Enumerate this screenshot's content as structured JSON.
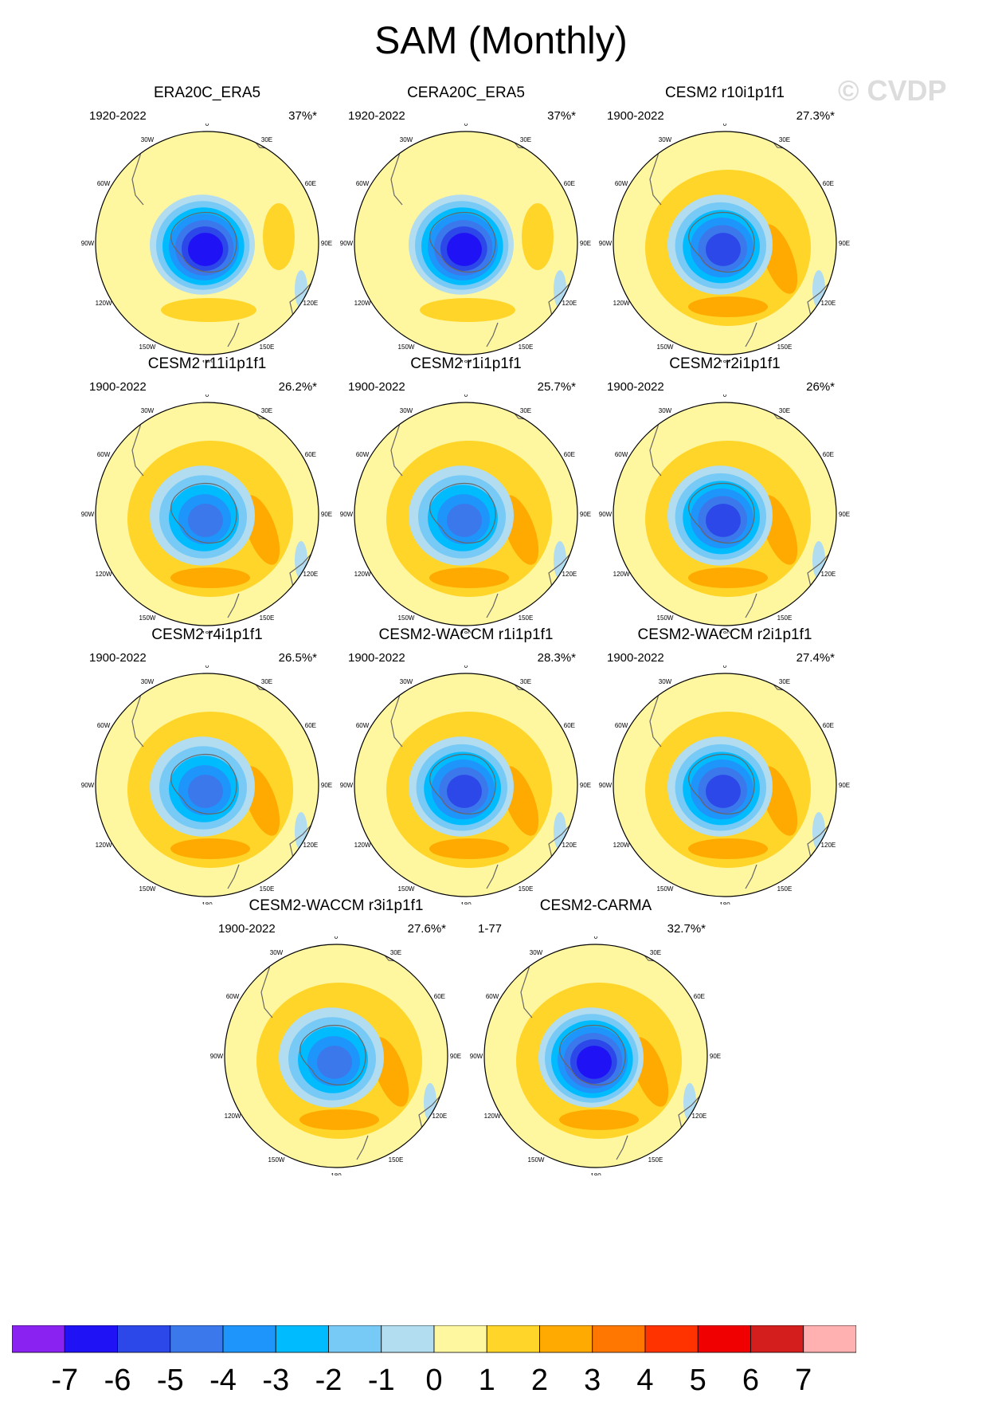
{
  "title": "SAM (Monthly)",
  "watermark": "© CVDP",
  "chart_data": {
    "type": "heatmap",
    "title": "SAM (Monthly)",
    "projection": "south polar stereographic",
    "longitude_labels": [
      "0",
      "30E",
      "60E",
      "90E",
      "120E",
      "150E",
      "180",
      "150W",
      "120W",
      "90W",
      "60W",
      "30W"
    ],
    "panels": [
      {
        "name": "ERA20C_ERA5",
        "period": "1920-2022",
        "pct_var": "37%*",
        "core_min": -7,
        "positive_max": 1.8,
        "ring": "weak"
      },
      {
        "name": "CERA20C_ERA5",
        "period": "1920-2022",
        "pct_var": "37%*",
        "core_min": -7,
        "positive_max": 1.8,
        "ring": "weak"
      },
      {
        "name": "CESM2 r10i1p1f1",
        "period": "1900-2022",
        "pct_var": "27.3%*",
        "core_min": -6,
        "positive_max": 2.6,
        "ring": "strong"
      },
      {
        "name": "CESM2 r11i1p1f1",
        "period": "1900-2022",
        "pct_var": "26.2%*",
        "core_min": -5,
        "positive_max": 2.4,
        "ring": "strong"
      },
      {
        "name": "CESM2 r1i1p1f1",
        "period": "1900-2022",
        "pct_var": "25.7%*",
        "core_min": -5,
        "positive_max": 2.2,
        "ring": "strong"
      },
      {
        "name": "CESM2 r2i1p1f1",
        "period": "1900-2022",
        "pct_var": "26%*",
        "core_min": -6,
        "positive_max": 2.4,
        "ring": "strong"
      },
      {
        "name": "CESM2 r4i1p1f1",
        "period": "1900-2022",
        "pct_var": "26.5%*",
        "core_min": -5,
        "positive_max": 2.6,
        "ring": "strong"
      },
      {
        "name": "CESM2-WACCM r1i1p1f1",
        "period": "1900-2022",
        "pct_var": "28.3%*",
        "core_min": -6,
        "positive_max": 2.4,
        "ring": "strong"
      },
      {
        "name": "CESM2-WACCM r2i1p1f1",
        "period": "1900-2022",
        "pct_var": "27.4%*",
        "core_min": -6,
        "positive_max": 2.4,
        "ring": "strong"
      },
      {
        "name": "CESM2-WACCM r3i1p1f1",
        "period": "1900-2022",
        "pct_var": "27.6%*",
        "core_min": -5,
        "positive_max": 2.4,
        "ring": "strong"
      },
      {
        "name": "CESM2-CARMA",
        "period": "1-77",
        "pct_var": "32.7%*",
        "core_min": -7,
        "positive_max": 2.6,
        "ring": "strong"
      }
    ],
    "colorbar": {
      "levels": [
        -7,
        -6,
        -5,
        -4,
        -3,
        -2,
        -1,
        0,
        1,
        2,
        3,
        4,
        5,
        6,
        7
      ],
      "colors": [
        "#8a22f2",
        "#1f12f5",
        "#2c48e8",
        "#3a78ec",
        "#1e95fa",
        "#00bcff",
        "#77caf5",
        "#b2dcf0",
        "#fff7a0",
        "#ffd52a",
        "#ffaa00",
        "#ff7700",
        "#ff3300",
        "#f00000",
        "#d41d1d",
        "#ffb0b0"
      ]
    }
  }
}
